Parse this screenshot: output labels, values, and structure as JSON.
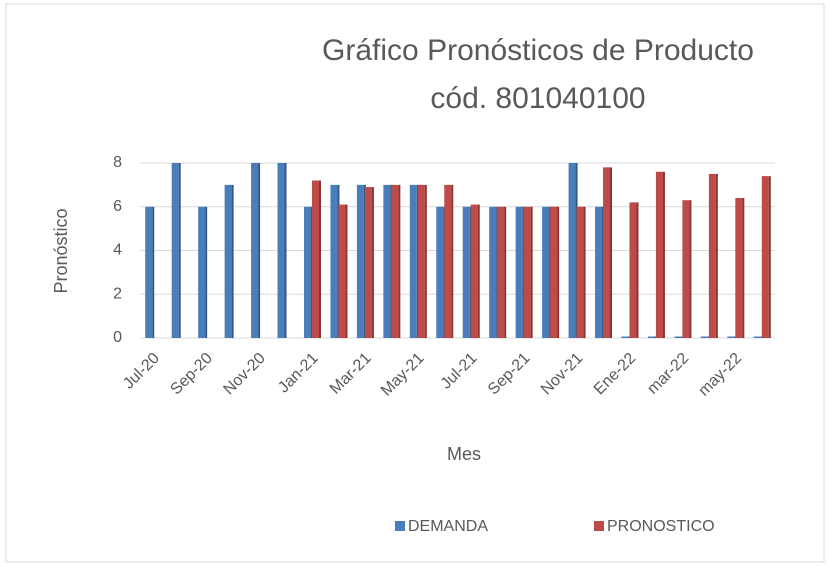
{
  "chart_data": {
    "type": "bar",
    "title": [
      "Gráfico Pronósticos de Producto",
      "cód. 801040100"
    ],
    "x_label": "Mes",
    "y_label": "Pronóstico",
    "categories": [
      "Jul-20",
      null,
      "Sep-20",
      null,
      "Nov-20",
      null,
      "Jan-21",
      null,
      "Mar-21",
      null,
      "May-21",
      null,
      "Jul-21",
      null,
      "Sep-21",
      null,
      "Nov-21",
      null,
      "Ene-22",
      null,
      "mar-22",
      null,
      "may-22",
      null
    ],
    "series": [
      {
        "name": "DEMANDA",
        "color": "#4a7ebb",
        "values": [
          6,
          8,
          6,
          7,
          8,
          8,
          6,
          7,
          7,
          7,
          7,
          6,
          6,
          6,
          6,
          6,
          8,
          6,
          0,
          0,
          0,
          0,
          0,
          0
        ]
      },
      {
        "name": "PRONOSTICO",
        "color": "#be4b48",
        "values": [
          null,
          null,
          null,
          null,
          null,
          null,
          7.2,
          6.1,
          6.9,
          7,
          7,
          7,
          6.1,
          6,
          6,
          6,
          6,
          7.8,
          6.2,
          7.6,
          6.3,
          7.5,
          6.4,
          7.4
        ]
      }
    ],
    "ylim": [
      0,
      8
    ],
    "yticks": [
      0,
      2,
      4,
      6,
      8
    ],
    "grid": true,
    "legend": "bottom"
  }
}
